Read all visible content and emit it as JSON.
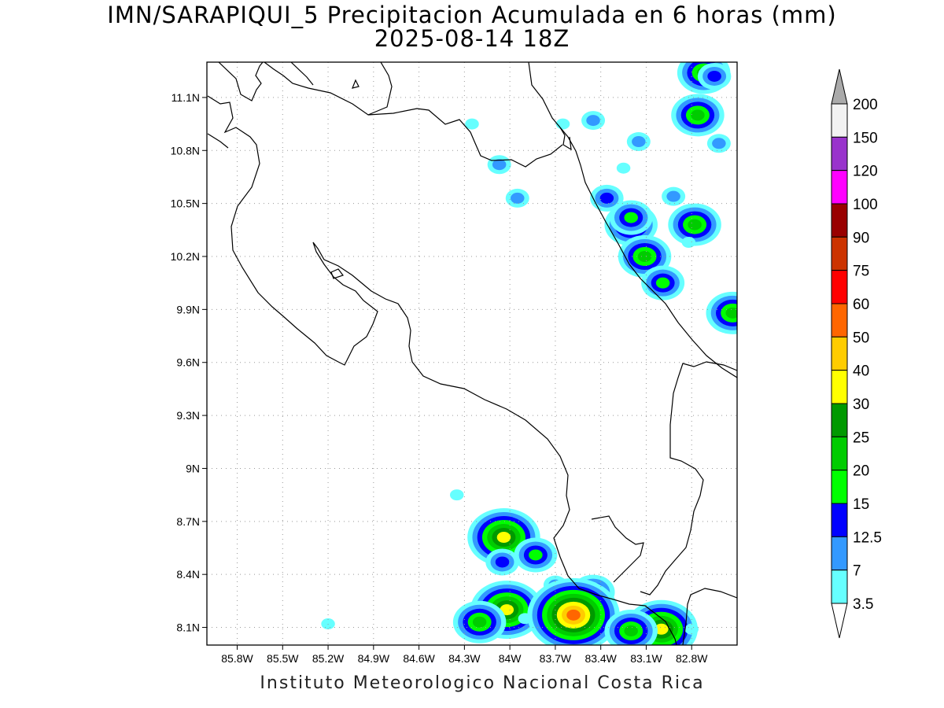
{
  "title": {
    "line1": "IMN/SARAPIQUI_5 Precipitacion Acumulada en 6 horas (mm)",
    "line2": "2025-08-14 18Z"
  },
  "footer": "Instituto Meteorologico Nacional Costa Rica",
  "map": {
    "lon_range": [
      -86.0,
      -82.5
    ],
    "lat_range": [
      8.0,
      11.3
    ],
    "lat_ticks": [
      {
        "value": 11.1,
        "label": "11.1N"
      },
      {
        "value": 10.8,
        "label": "10.8N"
      },
      {
        "value": 10.5,
        "label": "10.5N"
      },
      {
        "value": 10.2,
        "label": "10.2N"
      },
      {
        "value": 9.9,
        "label": "9.9N"
      },
      {
        "value": 9.6,
        "label": "9.6N"
      },
      {
        "value": 9.3,
        "label": "9.3N"
      },
      {
        "value": 9.0,
        "label": "9N"
      },
      {
        "value": 8.7,
        "label": "8.7N"
      },
      {
        "value": 8.4,
        "label": "8.4N"
      },
      {
        "value": 8.1,
        "label": "8.1N"
      }
    ],
    "lon_ticks": [
      {
        "value": -85.8,
        "label": "85.8W"
      },
      {
        "value": -85.5,
        "label": "85.5W"
      },
      {
        "value": -85.2,
        "label": "85.2W"
      },
      {
        "value": -84.9,
        "label": "84.9W"
      },
      {
        "value": -84.6,
        "label": "84.6W"
      },
      {
        "value": -84.3,
        "label": "84.3W"
      },
      {
        "value": -84.0,
        "label": "84W"
      },
      {
        "value": -83.7,
        "label": "83.7W"
      },
      {
        "value": -83.4,
        "label": "83.4W"
      },
      {
        "value": -83.1,
        "label": "83.1W"
      },
      {
        "value": -82.8,
        "label": "82.8W"
      }
    ],
    "grid": true
  },
  "legend": {
    "levels": [
      {
        "label": "3.5",
        "color": "#66ffff"
      },
      {
        "label": "7",
        "color": "#3399ff"
      },
      {
        "label": "12.5",
        "color": "#0000ff"
      },
      {
        "label": "15",
        "color": "#00ff00"
      },
      {
        "label": "20",
        "color": "#00cc00"
      },
      {
        "label": "25",
        "color": "#009900"
      },
      {
        "label": "30",
        "color": "#ffff00"
      },
      {
        "label": "40",
        "color": "#ffcc00"
      },
      {
        "label": "50",
        "color": "#ff6600"
      },
      {
        "label": "60",
        "color": "#ff0000"
      },
      {
        "label": "75",
        "color": "#cc3300"
      },
      {
        "label": "90",
        "color": "#990000"
      },
      {
        "label": "100",
        "color": "#ff00ff"
      },
      {
        "label": "120",
        "color": "#9933cc"
      },
      {
        "label": "150",
        "color": "#f2f2f2"
      },
      {
        "label": "200",
        "color": "#aaaaaa"
      }
    ],
    "under_color": "#ffffff",
    "over_color": "#aaaaaa"
  },
  "precip_cells": [
    {
      "lon": -82.72,
      "lat": 11.24,
      "level": 4
    },
    {
      "lon": -82.65,
      "lat": 11.22,
      "level": 2
    },
    {
      "lon": -82.76,
      "lat": 11.0,
      "level": 4
    },
    {
      "lon": -82.62,
      "lat": 10.84,
      "level": 1
    },
    {
      "lon": -83.15,
      "lat": 10.85,
      "level": 1
    },
    {
      "lon": -83.45,
      "lat": 10.97,
      "level": 1
    },
    {
      "lon": -83.65,
      "lat": 10.95,
      "level": 0
    },
    {
      "lon": -84.07,
      "lat": 10.72,
      "level": 1
    },
    {
      "lon": -84.25,
      "lat": 10.95,
      "level": 0
    },
    {
      "lon": -83.25,
      "lat": 10.7,
      "level": 0
    },
    {
      "lon": -83.95,
      "lat": 10.53,
      "level": 1
    },
    {
      "lon": -83.36,
      "lat": 10.53,
      "level": 2
    },
    {
      "lon": -83.2,
      "lat": 10.38,
      "level": 4
    },
    {
      "lon": -83.2,
      "lat": 10.42,
      "level": 3
    },
    {
      "lon": -82.92,
      "lat": 10.54,
      "level": 1
    },
    {
      "lon": -82.78,
      "lat": 10.38,
      "level": 4
    },
    {
      "lon": -82.82,
      "lat": 10.28,
      "level": 0
    },
    {
      "lon": -83.11,
      "lat": 10.2,
      "level": 4
    },
    {
      "lon": -82.99,
      "lat": 10.05,
      "level": 3
    },
    {
      "lon": -82.53,
      "lat": 9.88,
      "level": 4
    },
    {
      "lon": -84.35,
      "lat": 8.85,
      "level": 0
    },
    {
      "lon": -84.04,
      "lat": 8.61,
      "level": 6
    },
    {
      "lon": -84.05,
      "lat": 8.47,
      "level": 2
    },
    {
      "lon": -83.83,
      "lat": 8.51,
      "level": 3
    },
    {
      "lon": -83.7,
      "lat": 8.34,
      "level": 1
    },
    {
      "lon": -83.45,
      "lat": 8.3,
      "level": 3
    },
    {
      "lon": -84.02,
      "lat": 8.2,
      "level": 6
    },
    {
      "lon": -84.2,
      "lat": 8.13,
      "level": 4
    },
    {
      "lon": -83.9,
      "lat": 8.15,
      "level": 0
    },
    {
      "lon": -83.58,
      "lat": 8.17,
      "level": 8
    },
    {
      "lon": -83.1,
      "lat": 8.14,
      "level": 2
    },
    {
      "lon": -83.0,
      "lat": 8.09,
      "level": 6
    },
    {
      "lon": -83.2,
      "lat": 8.08,
      "level": 4
    },
    {
      "lon": -85.2,
      "lat": 8.12,
      "level": 0
    },
    {
      "lon": -82.8,
      "lat": 8.09,
      "level": 0
    }
  ]
}
